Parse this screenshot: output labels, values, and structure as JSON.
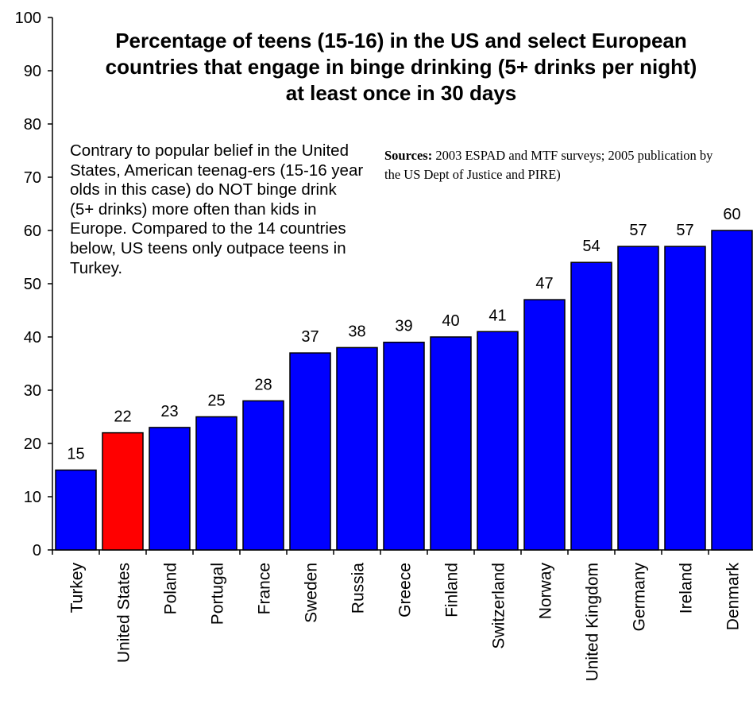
{
  "chart_data": {
    "type": "bar",
    "title_lines": [
      "Percentage of teens (15-16) in the US and select European",
      "countries that engage in binge drinking (5+ drinks per night)",
      "at least once in 30 days"
    ],
    "categories": [
      "Turkey",
      "United States",
      "Poland",
      "Portugal",
      "France",
      "Sweden",
      "Russia",
      "Greece",
      "Finland",
      "Switzerland",
      "Norway",
      "United Kingdom",
      "Germany",
      "Ireland",
      "Denmark"
    ],
    "values": [
      15,
      22,
      23,
      25,
      28,
      37,
      38,
      39,
      40,
      41,
      47,
      54,
      57,
      57,
      60
    ],
    "highlight_category": "United States",
    "colors": {
      "bar": "#0000ff",
      "highlight": "#ff0000",
      "stroke": "#000000"
    },
    "ylim": [
      0,
      100
    ],
    "yticks": [
      0,
      10,
      20,
      30,
      40,
      50,
      60,
      70,
      80,
      90,
      100
    ],
    "grid": false,
    "legend": "none"
  },
  "annotations": {
    "note": "Contrary to popular belief in the United States, American teenag-ers (15-16 year olds in this case) do NOT binge drink (5+ drinks) more often than kids in Europe. Compared to the 14 countries below, US teens only outpace teens in Turkey.",
    "sources_label": "Sources:",
    "sources_text": "2003 ESPAD and MTF surveys; 2005 publication by the US Dept of Justice and PIRE)"
  }
}
